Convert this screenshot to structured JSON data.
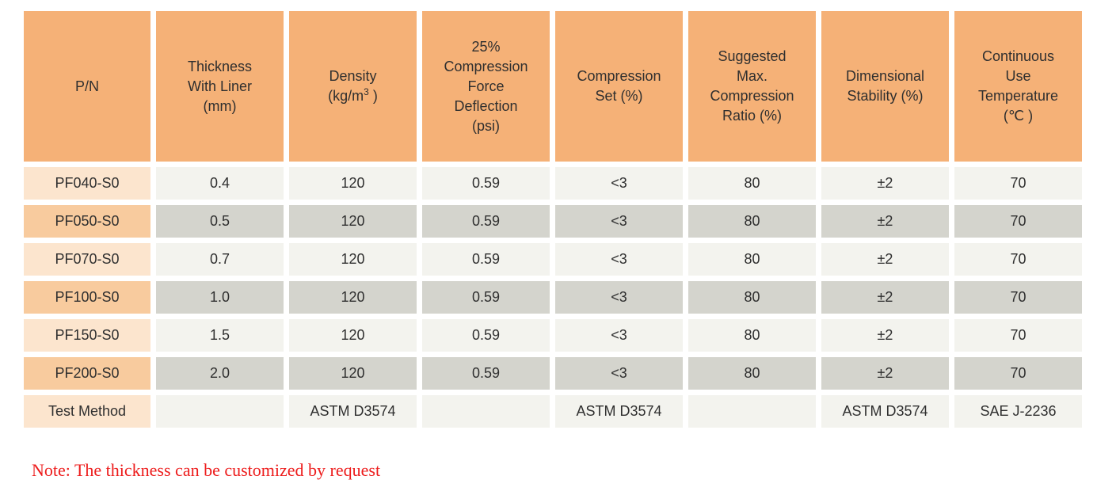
{
  "colors": {
    "header_bg": "#F5B177",
    "pn_cell_light": "#FCE5CE",
    "pn_cell_dark": "#F8CB9E",
    "data_cell_light": "#F3F3EE",
    "data_cell_dark": "#D4D4CD",
    "note_text": "#ED1C1C",
    "text": "#2F2F2F",
    "page_bg": "#FFFFFF"
  },
  "table": {
    "columns": [
      {
        "label": "P/N",
        "lines": [
          "P/N"
        ]
      },
      {
        "label": "Thickness With Liner (mm)",
        "lines": [
          "Thickness",
          "With Liner",
          "(mm)"
        ]
      },
      {
        "label": "Density (kg/m3)",
        "line1": "Density",
        "unit_pre": "(kg/m",
        "unit_sup": "3",
        "unit_post": " )"
      },
      {
        "label": "25% Compression Force Deflection (psi)",
        "lines": [
          "25%",
          "Compression",
          "Force",
          "Deflection",
          "(psi)"
        ]
      },
      {
        "label": "Compression Set (%)",
        "lines": [
          "Compression",
          "Set (%)"
        ]
      },
      {
        "label": "Suggested Max. Compression Ratio (%)",
        "lines": [
          "Suggested",
          "Max.",
          "Compression",
          "Ratio (%)"
        ]
      },
      {
        "label": "Dimensional Stability (%)",
        "lines": [
          "Dimensional",
          "Stability (%)"
        ]
      },
      {
        "label": "Continuous Use Temperature (℃)",
        "lines": [
          "Continuous",
          "Use",
          "Temperature",
          "(℃ )"
        ]
      }
    ],
    "rows": [
      {
        "cells": [
          "PF040-S0",
          "0.4",
          "120",
          "0.59",
          "<3",
          "80",
          "±2",
          "70"
        ]
      },
      {
        "cells": [
          "PF050-S0",
          "0.5",
          "120",
          "0.59",
          "<3",
          "80",
          "±2",
          "70"
        ]
      },
      {
        "cells": [
          "PF070-S0",
          "0.7",
          "120",
          "0.59",
          "<3",
          "80",
          "±2",
          "70"
        ]
      },
      {
        "cells": [
          "PF100-S0",
          "1.0",
          "120",
          "0.59",
          "<3",
          "80",
          "±2",
          "70"
        ]
      },
      {
        "cells": [
          "PF150-S0",
          "1.5",
          "120",
          "0.59",
          "<3",
          "80",
          "±2",
          "70"
        ]
      },
      {
        "cells": [
          "PF200-S0",
          "2.0",
          "120",
          "0.59",
          "<3",
          "80",
          "±2",
          "70"
        ]
      },
      {
        "cells": [
          "Test Method",
          "",
          "ASTM D3574",
          "",
          "ASTM D3574",
          "",
          "ASTM D3574",
          "SAE J-2236"
        ]
      }
    ]
  },
  "note": {
    "text": "Note: The thickness can be customized by request"
  }
}
